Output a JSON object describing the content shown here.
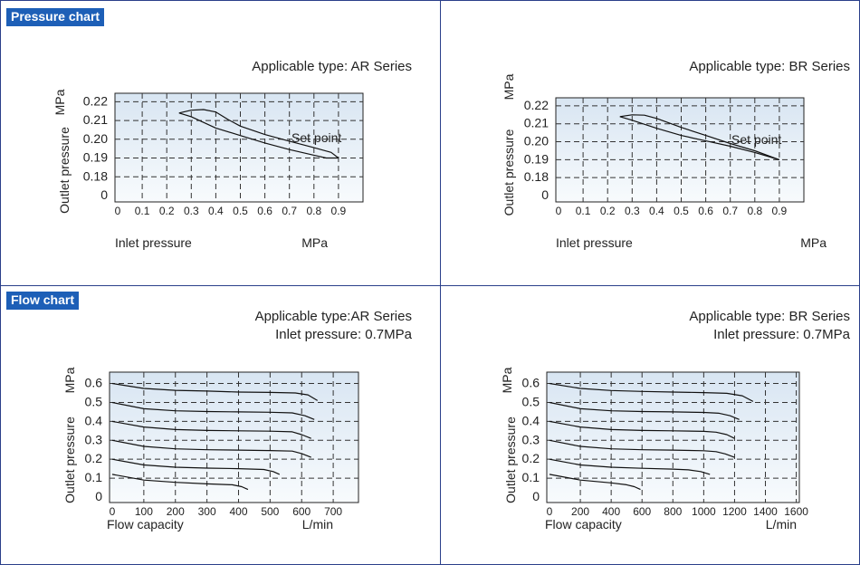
{
  "sections": {
    "pressure": "Pressure chart",
    "flow": "Flow chart"
  },
  "colors": {
    "tag_bg": "#1d5fb7",
    "frame": "#2a3f8a",
    "plot_bg_top": "#d8e5f2",
    "plot_bg_bottom": "#f8fbfd"
  },
  "chart_data": [
    {
      "type": "line",
      "title": "Applicable type: AR Series",
      "subtitle": "",
      "xlabel": "Inlet pressure",
      "xunit": "MPa",
      "ylabel": "Outlet pressure",
      "yunit": "MPa",
      "x_ticks": [
        0,
        0.1,
        0.2,
        0.3,
        0.4,
        0.5,
        0.6,
        0.7,
        0.8,
        0.9
      ],
      "x_tick_labels": [
        "0",
        "0.1",
        "0.2",
        "0.3",
        "0.4",
        "0.5",
        "0.6",
        "0.7",
        "0.8",
        "0.9"
      ],
      "y_ticks": [
        0,
        0.18,
        0.19,
        0.2,
        0.21,
        0.22
      ],
      "y_tick_labels": [
        "0",
        "0.18",
        "0.19",
        "0.20",
        "0.21",
        "0.22"
      ],
      "grid": true,
      "annotation": "Set point",
      "series": [
        {
          "x": [
            0.25,
            0.3,
            0.35,
            0.4,
            0.45,
            0.5,
            0.6,
            0.7,
            0.8,
            0.87,
            0.9
          ],
          "y": [
            0.214,
            0.2155,
            0.2158,
            0.2145,
            0.2105,
            0.207,
            0.2025,
            0.199,
            0.1955,
            0.193,
            0.19
          ]
        },
        {
          "x": [
            0.25,
            0.3,
            0.4,
            0.5,
            0.6,
            0.7,
            0.8,
            0.85,
            0.9
          ],
          "y": [
            0.214,
            0.212,
            0.206,
            0.202,
            0.198,
            0.1945,
            0.1915,
            0.19,
            0.19
          ]
        }
      ]
    },
    {
      "type": "line",
      "title": "Applicable type: BR Series",
      "subtitle": "",
      "xlabel": "Inlet pressure",
      "xunit": "MPa",
      "ylabel": "Outlet pressure",
      "yunit": "MPa",
      "x_ticks": [
        0,
        0.1,
        0.2,
        0.3,
        0.4,
        0.5,
        0.6,
        0.7,
        0.8,
        0.9
      ],
      "x_tick_labels": [
        "0",
        "0.1",
        "0.2",
        "0.3",
        "0.4",
        "0.5",
        "0.6",
        "0.7",
        "0.8",
        "0.9"
      ],
      "y_ticks": [
        0,
        0.18,
        0.19,
        0.2,
        0.21,
        0.22
      ],
      "y_tick_labels": [
        "0",
        "0.18",
        "0.19",
        "0.20",
        "0.21",
        "0.22"
      ],
      "grid": true,
      "annotation": "Set point",
      "series": [
        {
          "x": [
            0.25,
            0.3,
            0.35,
            0.4,
            0.5,
            0.6,
            0.7,
            0.8,
            0.9
          ],
          "y": [
            0.214,
            0.215,
            0.2148,
            0.213,
            0.208,
            0.2035,
            0.199,
            0.195,
            0.19
          ]
        },
        {
          "x": [
            0.25,
            0.3,
            0.4,
            0.5,
            0.6,
            0.7,
            0.8,
            0.9
          ],
          "y": [
            0.214,
            0.212,
            0.2075,
            0.2035,
            0.2005,
            0.1975,
            0.194,
            0.19
          ]
        }
      ]
    },
    {
      "type": "line",
      "title": "Applicable type:AR Series",
      "subtitle": "Inlet pressure: 0.7MPa",
      "xlabel": "Flow capacity",
      "xunit": "L/min",
      "ylabel": "Outlet pressure",
      "yunit": "MPa",
      "x_ticks": [
        0,
        100,
        200,
        300,
        400,
        500,
        600,
        700
      ],
      "x_tick_labels": [
        "0",
        "100",
        "200",
        "300",
        "400",
        "500",
        "600",
        "700"
      ],
      "xlim": [
        0,
        780
      ],
      "y_ticks": [
        0,
        0.1,
        0.2,
        0.3,
        0.4,
        0.5,
        0.6
      ],
      "y_tick_labels": [
        "0",
        "0.1",
        "0.2",
        "0.3",
        "0.4",
        "0.5",
        "0.6"
      ],
      "ylim": [
        0,
        0.66
      ],
      "grid": true,
      "series": [
        {
          "x": [
            0,
            100,
            200,
            300,
            400,
            500,
            580,
            620,
            650
          ],
          "y": [
            0.6,
            0.574,
            0.564,
            0.56,
            0.555,
            0.553,
            0.55,
            0.54,
            0.51
          ]
        },
        {
          "x": [
            0,
            100,
            200,
            300,
            400,
            500,
            570,
            610,
            640
          ],
          "y": [
            0.5,
            0.467,
            0.456,
            0.452,
            0.45,
            0.448,
            0.445,
            0.43,
            0.41
          ]
        },
        {
          "x": [
            0,
            100,
            200,
            300,
            400,
            500,
            570,
            600,
            630
          ],
          "y": [
            0.4,
            0.37,
            0.357,
            0.352,
            0.35,
            0.348,
            0.345,
            0.33,
            0.31
          ]
        },
        {
          "x": [
            0,
            100,
            200,
            300,
            400,
            500,
            570,
            600,
            630
          ],
          "y": [
            0.3,
            0.268,
            0.255,
            0.25,
            0.248,
            0.246,
            0.243,
            0.23,
            0.21
          ]
        },
        {
          "x": [
            0,
            100,
            200,
            300,
            400,
            480,
            510,
            530
          ],
          "y": [
            0.2,
            0.17,
            0.158,
            0.153,
            0.15,
            0.146,
            0.135,
            0.12
          ]
        },
        {
          "x": [
            0,
            100,
            200,
            300,
            380,
            410,
            430
          ],
          "y": [
            0.12,
            0.09,
            0.078,
            0.07,
            0.065,
            0.055,
            0.04
          ]
        }
      ]
    },
    {
      "type": "line",
      "title": "Applicable type: BR Series",
      "subtitle": "Inlet pressure: 0.7MPa",
      "xlabel": "Flow capacity",
      "xunit": "L/min",
      "ylabel": "Outlet pressure",
      "yunit": "MPa",
      "x_ticks": [
        0,
        200,
        400,
        600,
        800,
        1000,
        1200,
        1400,
        1600
      ],
      "x_tick_labels": [
        "0",
        "200",
        "400",
        "600",
        "800",
        "1000",
        "1200",
        "1400",
        "1600"
      ],
      "xlim": [
        0,
        1620
      ],
      "y_ticks": [
        0,
        0.1,
        0.2,
        0.3,
        0.4,
        0.5,
        0.6
      ],
      "y_tick_labels": [
        "0",
        "0.1",
        "0.2",
        "0.3",
        "0.4",
        "0.5",
        "0.6"
      ],
      "ylim": [
        0,
        0.66
      ],
      "grid": true,
      "series": [
        {
          "x": [
            0,
            200,
            400,
            600,
            800,
            1000,
            1150,
            1250,
            1320
          ],
          "y": [
            0.6,
            0.574,
            0.563,
            0.558,
            0.555,
            0.552,
            0.548,
            0.535,
            0.505
          ]
        },
        {
          "x": [
            0,
            200,
            400,
            600,
            800,
            1000,
            1100,
            1170,
            1230
          ],
          "y": [
            0.5,
            0.467,
            0.456,
            0.452,
            0.45,
            0.447,
            0.443,
            0.43,
            0.41
          ]
        },
        {
          "x": [
            0,
            200,
            400,
            600,
            800,
            1000,
            1080,
            1150,
            1200
          ],
          "y": [
            0.4,
            0.37,
            0.357,
            0.352,
            0.35,
            0.347,
            0.343,
            0.33,
            0.31
          ]
        },
        {
          "x": [
            0,
            200,
            400,
            600,
            800,
            1000,
            1080,
            1140,
            1200
          ],
          "y": [
            0.3,
            0.268,
            0.255,
            0.25,
            0.248,
            0.245,
            0.24,
            0.228,
            0.21
          ]
        },
        {
          "x": [
            0,
            200,
            400,
            600,
            800,
            900,
            980,
            1040
          ],
          "y": [
            0.2,
            0.17,
            0.158,
            0.152,
            0.148,
            0.144,
            0.135,
            0.12
          ]
        },
        {
          "x": [
            0,
            200,
            400,
            500,
            550,
            590
          ],
          "y": [
            0.12,
            0.09,
            0.075,
            0.065,
            0.055,
            0.04
          ]
        }
      ]
    }
  ]
}
